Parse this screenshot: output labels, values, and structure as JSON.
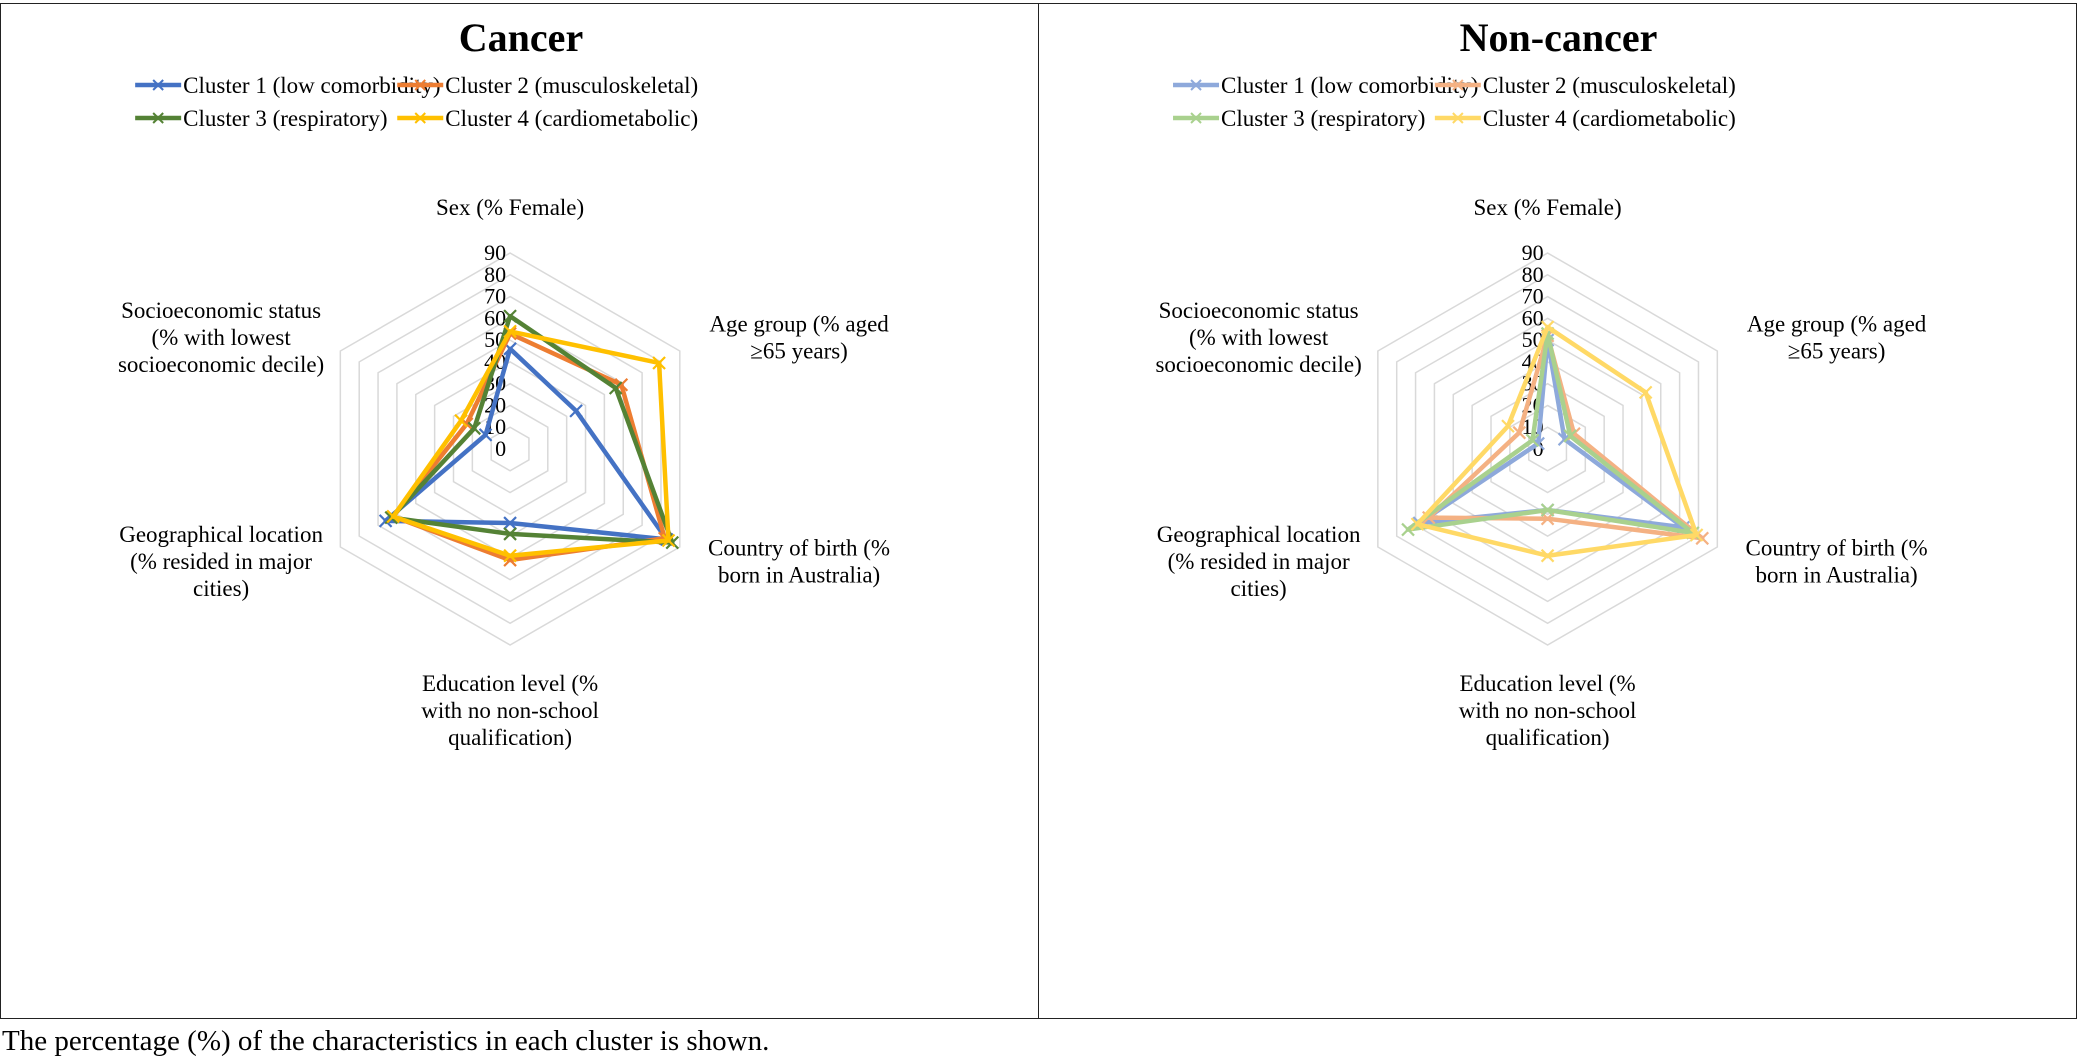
{
  "caption": "The percentage (%) of the characteristics in each cluster is shown.",
  "chart_data": [
    {
      "type": "radar",
      "title": "Cancer",
      "categories": [
        [
          "Sex (% Female)"
        ],
        [
          "Age group (% aged",
          "≥65 years)"
        ],
        [
          "Country of birth (%",
          "born in Australia)"
        ],
        [
          "Education level (%",
          "with no non-school",
          "qualification)"
        ],
        [
          "Geographical location",
          "(% resided in major",
          "cities)"
        ],
        [
          "Socioeconomic status",
          "(% with lowest",
          "socioeconomic decile)"
        ]
      ],
      "rlim": [
        0,
        90
      ],
      "ticks": [
        0,
        10,
        20,
        30,
        40,
        50,
        60,
        70,
        80,
        90
      ],
      "legend_position": "top",
      "series": [
        {
          "name": "Cluster 1 (low comorbidity)",
          "color": "#4472C4",
          "values": [
            46,
            35,
            83,
            34,
            66,
            13
          ]
        },
        {
          "name": "Cluster 2 (musculoskeletal)",
          "color": "#ED7D31",
          "values": [
            53,
            59,
            82,
            51,
            62,
            23
          ]
        },
        {
          "name": "Cluster 3 (respiratory)",
          "color": "#548235",
          "values": [
            61,
            56,
            86,
            39,
            63,
            19
          ]
        },
        {
          "name": "Cluster 4 (cardiometabolic)",
          "color": "#FFC000",
          "values": [
            54,
            79,
            84,
            49,
            62,
            26
          ]
        }
      ]
    },
    {
      "type": "radar",
      "title": "Non-cancer",
      "categories": [
        [
          "Sex (% Female)"
        ],
        [
          "Age group (% aged",
          "≥65 years)"
        ],
        [
          "Country of birth (%",
          "born in Australia)"
        ],
        [
          "Education level (%",
          "with no non-school",
          "qualification)"
        ],
        [
          "Geographical location",
          "(% resided in major",
          "cities)"
        ],
        [
          "Socioeconomic status",
          "(% with lowest",
          "socioeconomic decile)"
        ]
      ],
      "rlim": [
        0,
        90
      ],
      "ticks": [
        0,
        10,
        20,
        30,
        40,
        50,
        60,
        70,
        80,
        90
      ],
      "legend_position": "top",
      "series": [
        {
          "name": "Cluster 1 (low comorbidity)",
          "color": "#8EA9DB",
          "values": [
            50,
            9,
            72,
            28,
            68,
            5
          ]
        },
        {
          "name": "Cluster 2 (musculoskeletal)",
          "color": "#F4B183",
          "values": [
            52,
            14,
            82,
            32,
            63,
            15
          ]
        },
        {
          "name": "Cluster 3 (respiratory)",
          "color": "#A9D18E",
          "values": [
            53,
            12,
            77,
            28,
            74,
            8
          ]
        },
        {
          "name": "Cluster 4 (cardiometabolic)",
          "color": "#FFD966",
          "values": [
            56,
            52,
            79,
            49,
            69,
            21
          ]
        }
      ]
    }
  ]
}
